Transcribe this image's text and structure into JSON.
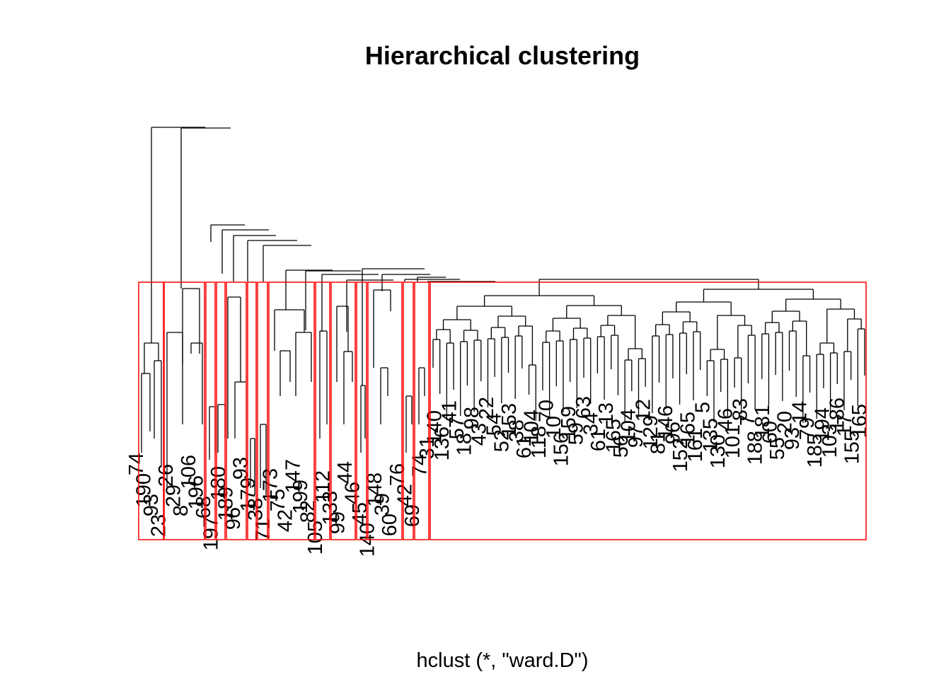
{
  "chart_data": {
    "type": "dendrogram",
    "title": "Hierarchical clustering",
    "subtitle": "hclust (*, \"ward.D\")",
    "method": "ward.D",
    "clusters_highlighted": 17,
    "rect_color": "#ff0000",
    "line_color": "#000000",
    "leaf_labels": [
      "74",
      "190",
      "93",
      "23",
      "26",
      "29",
      "8",
      "106",
      "196",
      "68",
      "197",
      "180",
      "189",
      "96",
      "93",
      "179",
      "38",
      "71",
      "173",
      "75",
      "42",
      "147",
      "199",
      "82",
      "105",
      "112",
      "133",
      "99",
      "44",
      "46",
      "45",
      "140",
      "148",
      "39",
      "60",
      "76",
      "42",
      "69",
      "74",
      "31",
      "140",
      "136",
      "41",
      "57",
      "18",
      "98",
      "43",
      "22",
      "54",
      "52",
      "153",
      "38",
      "61",
      "104",
      "118",
      "70",
      "10",
      "156",
      "159",
      "59",
      "63",
      "34",
      "61",
      "13",
      "165",
      "56",
      "104",
      "97",
      "12",
      "129",
      "81",
      "146",
      "96",
      "152",
      "165",
      "161",
      "5",
      "135",
      "130",
      "46",
      "101",
      "83",
      "7",
      "188",
      "181",
      "60",
      "55",
      "20",
      "93",
      "14",
      "79",
      "185",
      "194",
      "103",
      "186",
      "17",
      "155",
      "165"
    ]
  }
}
